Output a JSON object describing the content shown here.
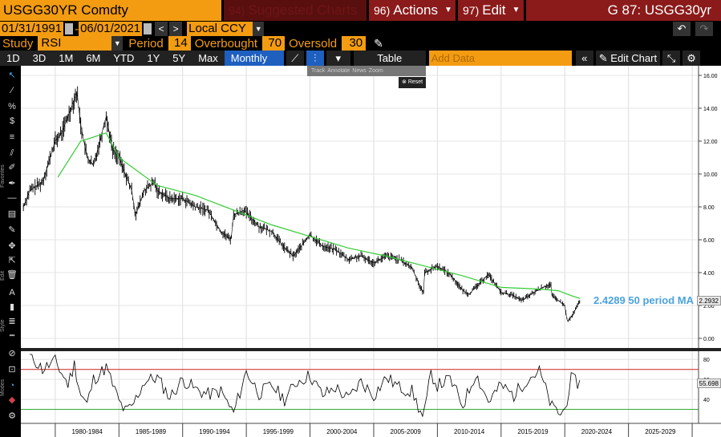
{
  "header": {
    "ticker": "USGG30YR Comdty",
    "suggested_num": "94)",
    "suggested_label": "Suggested Charts",
    "actions_num": "96)",
    "actions_label": "Actions",
    "edit_num": "97)",
    "edit_label": "Edit",
    "security_title": "G 87: USGG30yr"
  },
  "range": {
    "start_date": "01/31/1991",
    "end_date": "06/01/2021",
    "currency": "Local CCY"
  },
  "study": {
    "study_label": "Study",
    "study_value": "RSI",
    "period_label": "Period",
    "period_value": "14",
    "overbought_label": "Overbought",
    "overbought_value": "70",
    "oversold_label": "Oversold",
    "oversold_value": "30"
  },
  "toolbar": {
    "timeframes": [
      "1D",
      "3D",
      "1M",
      "6M",
      "YTD",
      "1Y",
      "5Y",
      "Max"
    ],
    "frequency": "Monthly ▼",
    "table_label": "Table",
    "add_data_placeholder": "Add Data",
    "edit_chart_label": "Edit Chart"
  },
  "annotation_bar": {
    "items": [
      "Track",
      "Annotate",
      "News",
      "Zoom"
    ],
    "reset_label": "Reset"
  },
  "side_labels": {
    "favorites": "Favorites",
    "edit": "Edit",
    "style": "Style",
    "modes": "Modes"
  },
  "colors": {
    "accent": "#f39c12",
    "menu_red": "#8b1a1a",
    "price": "#000000",
    "ma": "#33cc33",
    "rsi_line": "#000000",
    "overbought_line": "#cc2222",
    "oversold_line": "#33aa33",
    "selected_blue": "#1e5fbf"
  },
  "chart_data": {
    "type": "line",
    "price_panel": {
      "series": [
        {
          "name": "USGG30YR",
          "x": [
            1977.5,
            1978,
            1979,
            1980,
            1980.5,
            1981,
            1981.7,
            1982,
            1982.5,
            1983,
            1984,
            1984.5,
            1985,
            1986,
            1986.3,
            1987,
            1987.8,
            1988,
            1989,
            1990,
            1991,
            1992,
            1993,
            1993.8,
            1994,
            1994.8,
            1996,
            1997,
            1998,
            1998.7,
            2000,
            2001,
            2002,
            2003,
            2004,
            2005,
            2006,
            2007,
            2008,
            2008.9,
            2009,
            2010,
            2011,
            2012,
            2012.5,
            2014,
            2015,
            2016,
            2016.6,
            2018,
            2018.9,
            2019,
            2020,
            2020.2,
            2020.6,
            2021.2
          ],
          "y": [
            8.0,
            9.0,
            9.5,
            12.0,
            12.5,
            13.5,
            15.0,
            13.0,
            11.0,
            10.5,
            13.5,
            11.5,
            11.0,
            9.0,
            7.5,
            9.0,
            9.5,
            9.0,
            8.5,
            8.5,
            8.0,
            7.8,
            6.5,
            6.0,
            7.5,
            7.8,
            6.8,
            6.5,
            5.5,
            5.0,
            6.3,
            5.6,
            5.4,
            4.8,
            5.0,
            4.6,
            5.0,
            4.8,
            4.3,
            2.7,
            4.0,
            4.4,
            3.9,
            2.9,
            2.7,
            3.9,
            2.8,
            2.6,
            2.3,
            3.0,
            3.3,
            2.6,
            2.0,
            1.0,
            1.4,
            2.2932
          ]
        },
        {
          "name": "2.4289 50 period MA",
          "x": [
            1980.2,
            1982,
            1984,
            1985,
            1988,
            1991,
            1994,
            1997,
            2000,
            2003,
            2006,
            2009,
            2012,
            2015,
            2018,
            2019.5,
            2020.5,
            2021.2
          ],
          "y": [
            9.8,
            12.0,
            12.5,
            11.0,
            9.3,
            8.7,
            7.8,
            6.9,
            6.2,
            5.5,
            5.0,
            4.4,
            3.8,
            3.1,
            3.0,
            2.9,
            2.6,
            2.4289
          ]
        }
      ],
      "ylim": [
        0,
        16
      ],
      "yticks": [
        "16.00",
        "14.00",
        "12.00",
        "10.00",
        "8.00",
        "6.00",
        "4.00",
        "2.00",
        "0.00"
      ],
      "last_value_tag": "2.2932",
      "ma_label": "2.4289 50 period MA"
    },
    "rsi_panel": {
      "series": [
        {
          "name": "RSI",
          "x": [
            1978,
            1979,
            1980,
            1981,
            1981.5,
            1982,
            1982.5,
            1983,
            1984,
            1985,
            1985.5,
            1986,
            1987,
            1988,
            1989,
            1990,
            1991,
            1992,
            1993,
            1994,
            1995,
            1996,
            1997,
            1998,
            1999,
            2000,
            2001,
            2002,
            2003,
            2004,
            2005,
            2006,
            2007,
            2008,
            2008.9,
            2009.5,
            2010,
            2011,
            2012,
            2013,
            2014,
            2015,
            2016,
            2017,
            2018,
            2019,
            2019.7,
            2020,
            2020.5,
            2021.2
          ],
          "y": [
            85,
            70,
            78,
            55,
            75,
            45,
            35,
            60,
            72,
            38,
            28,
            32,
            58,
            62,
            42,
            60,
            50,
            45,
            48,
            26,
            68,
            46,
            54,
            40,
            58,
            64,
            44,
            52,
            40,
            58,
            44,
            62,
            52,
            48,
            20,
            66,
            54,
            60,
            34,
            66,
            38,
            54,
            44,
            60,
            68,
            32,
            25,
            30,
            60,
            55.698
          ]
        }
      ],
      "ylim": [
        20,
        85
      ],
      "overbought": 70,
      "oversold": 30,
      "yticks": [
        "80",
        "60",
        "40"
      ],
      "last_value_tag": "55.698"
    },
    "x_tick_labels": [
      "1980-1984",
      "1985-1989",
      "1990-1994",
      "1995-1999",
      "2000-2004",
      "2005-2009",
      "2010-2014",
      "2015-2019",
      "2020-2024",
      "2025-2029"
    ]
  }
}
